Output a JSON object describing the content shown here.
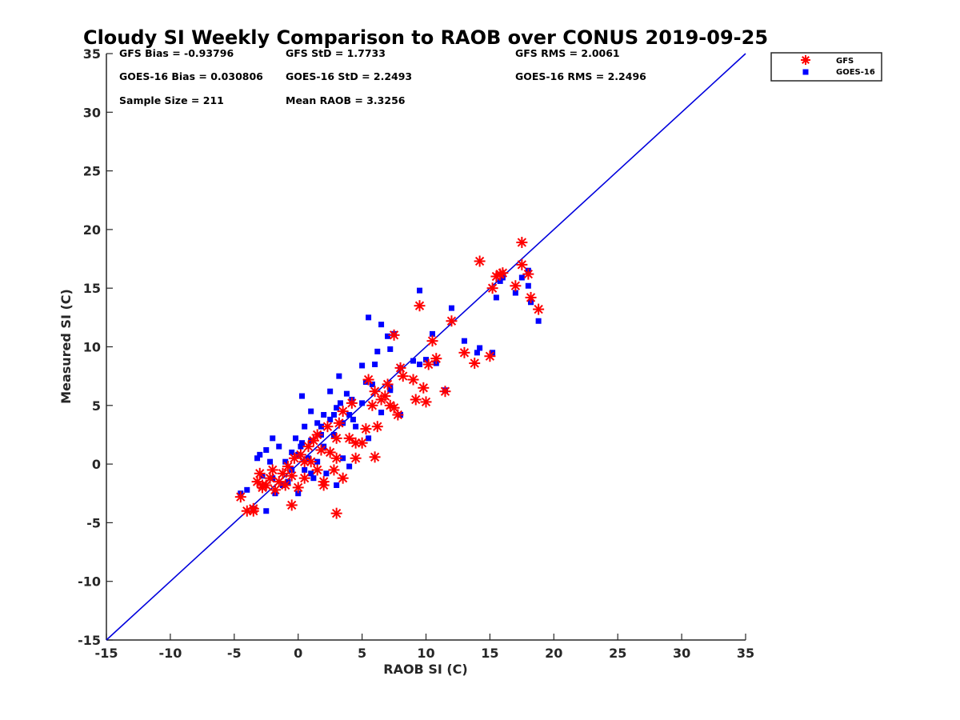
{
  "chart_data": {
    "type": "scatter",
    "title": "Cloudy SI Weekly Comparison to RAOB over CONUS 2019-09-25",
    "xlabel": "RAOB SI (C)",
    "ylabel": "Measured SI (C)",
    "xlim": [
      -15,
      35
    ],
    "ylim": [
      -15,
      35
    ],
    "xticks": [
      "-15",
      "-10",
      "-5",
      "0",
      "5",
      "10",
      "15",
      "20",
      "25",
      "30",
      "35"
    ],
    "yticks": [
      "-15",
      "-10",
      "-5",
      "0",
      "5",
      "10",
      "15",
      "20",
      "25",
      "30",
      "35"
    ],
    "grid": false,
    "legend_position": "outside top-right",
    "reference_line": {
      "x": [
        -15,
        35
      ],
      "y": [
        -15,
        35
      ],
      "color": "#0000dd"
    },
    "stats": [
      {
        "label": "GFS Bias = -0.93796"
      },
      {
        "label": "GFS StD = 1.7733"
      },
      {
        "label": "GFS RMS = 2.0061"
      },
      {
        "label": "GOES-16 Bias = 0.030806"
      },
      {
        "label": "GOES-16 StD = 2.2493"
      },
      {
        "label": "GOES-16 RMS = 2.2496"
      },
      {
        "label": "Sample Size = 211"
      },
      {
        "label": "Mean RAOB = 3.3256"
      }
    ],
    "series": [
      {
        "name": "GFS",
        "color": "#ff0000",
        "marker": "asterisk",
        "x": [
          -4.5,
          -4,
          -3.5,
          -3.2,
          -3,
          -2.8,
          -2.5,
          -2.2,
          -2,
          -1.8,
          -1.5,
          -1.2,
          -1,
          -0.8,
          -0.5,
          -0.3,
          0,
          0.2,
          0.5,
          0.8,
          1,
          1.2,
          1.5,
          2,
          2.3,
          2.5,
          2.8,
          3,
          3,
          3.2,
          3.5,
          3.5,
          4,
          4.2,
          4.5,
          5,
          5.3,
          5.5,
          5.8,
          6,
          6.2,
          6.5,
          6.8,
          7,
          7.2,
          7.5,
          7.5,
          7.8,
          8,
          8.2,
          9,
          9.2,
          9.5,
          9.8,
          10,
          10.2,
          10.5,
          10.8,
          11.5,
          12,
          13,
          13.8,
          14.2,
          15,
          15.2,
          15.5,
          15.8,
          16,
          17,
          17.5,
          17.5,
          18,
          18.2,
          18.8,
          -0.5,
          3,
          6,
          2,
          1.5,
          -2.8,
          -3.5,
          0.5,
          1.8,
          4.5
        ],
        "y": [
          -2.8,
          -4,
          -3.8,
          -1.5,
          -0.8,
          -2,
          -1.8,
          -1.2,
          -0.5,
          -2.2,
          -1.5,
          -0.8,
          -1.8,
          -0.2,
          -1,
          0.5,
          -2,
          0.8,
          -1.2,
          1.5,
          0.2,
          2,
          -0.5,
          -1.5,
          3.2,
          1,
          -0.5,
          2.2,
          0.5,
          3.5,
          -1.2,
          4.5,
          2.2,
          5.2,
          1.8,
          1.8,
          3,
          7.2,
          5,
          6.2,
          3.2,
          5.5,
          5.8,
          6.8,
          5,
          4.8,
          11,
          4.2,
          8.2,
          7.5,
          7.2,
          5.5,
          13.5,
          6.5,
          5.3,
          8.5,
          10.5,
          9,
          6.2,
          12.2,
          9.5,
          8.6,
          17.3,
          9.2,
          15,
          16,
          16.2,
          16.3,
          15.2,
          18.9,
          17,
          16.2,
          14.2,
          13.2,
          -3.5,
          -4.2,
          0.6,
          -1.8,
          2.5,
          -1.8,
          -4,
          0.2,
          1.2,
          0.5
        ]
      },
      {
        "name": "GOES-16",
        "color": "#0000ff",
        "marker": "square",
        "x": [
          -4.5,
          -4,
          -3.5,
          -3.2,
          -3,
          -2.8,
          -2.5,
          -2.2,
          -2,
          -2,
          -1.8,
          -1.5,
          -1.2,
          -1,
          -0.8,
          -0.5,
          -0.5,
          -0.2,
          0,
          0,
          0.2,
          0.5,
          0.5,
          0.8,
          1,
          1,
          1.2,
          1.5,
          1.5,
          1.8,
          2,
          2,
          2.2,
          2.5,
          2.5,
          2.8,
          3,
          3,
          3.2,
          3.5,
          3.5,
          3.8,
          4,
          4,
          4.2,
          4.5,
          5,
          5,
          5.3,
          5.5,
          5.8,
          6,
          6.2,
          6.5,
          7,
          7.2,
          7.2,
          7.5,
          8,
          8,
          9,
          9.5,
          9.5,
          10,
          10.5,
          10.8,
          11.5,
          12,
          13,
          14,
          14.2,
          15.2,
          15.5,
          15.8,
          16,
          17,
          17.5,
          18,
          18,
          18.2,
          18.8,
          -2.5,
          0.3,
          1.8,
          2.8,
          3.3,
          4.3,
          5.5,
          6.5,
          7.2,
          1,
          0.3
        ],
        "y": [
          -2.5,
          -2.2,
          -3.8,
          0.5,
          0.8,
          -1,
          -4,
          0.2,
          -1.2,
          2.2,
          -2.5,
          1.5,
          -1.8,
          0.2,
          -1.5,
          1,
          -0.5,
          2.2,
          -2.5,
          0.8,
          1.5,
          -0.5,
          3.2,
          0.5,
          4.5,
          2,
          -1.2,
          3.5,
          0.2,
          2.5,
          4.2,
          1.5,
          -0.8,
          3.8,
          6.2,
          2.5,
          -1.8,
          4.8,
          7.5,
          3.5,
          0.5,
          6,
          -0.2,
          4.2,
          5.5,
          3.2,
          8.4,
          5.2,
          7,
          12.5,
          6.8,
          8.5,
          9.6,
          11.9,
          10.9,
          9.8,
          6.3,
          11.1,
          4.2,
          8.2,
          8.8,
          14.8,
          8.5,
          8.9,
          11.1,
          8.6,
          6.3,
          13.3,
          10.5,
          9.5,
          9.9,
          9.5,
          14.2,
          15.6,
          15.9,
          14.6,
          15.9,
          15.2,
          16.5,
          13.8,
          12.2,
          1.2,
          5.8,
          3.2,
          4.2,
          5.2,
          3.8,
          2.2,
          4.4,
          6.5,
          -0.8,
          1.8
        ]
      }
    ]
  }
}
